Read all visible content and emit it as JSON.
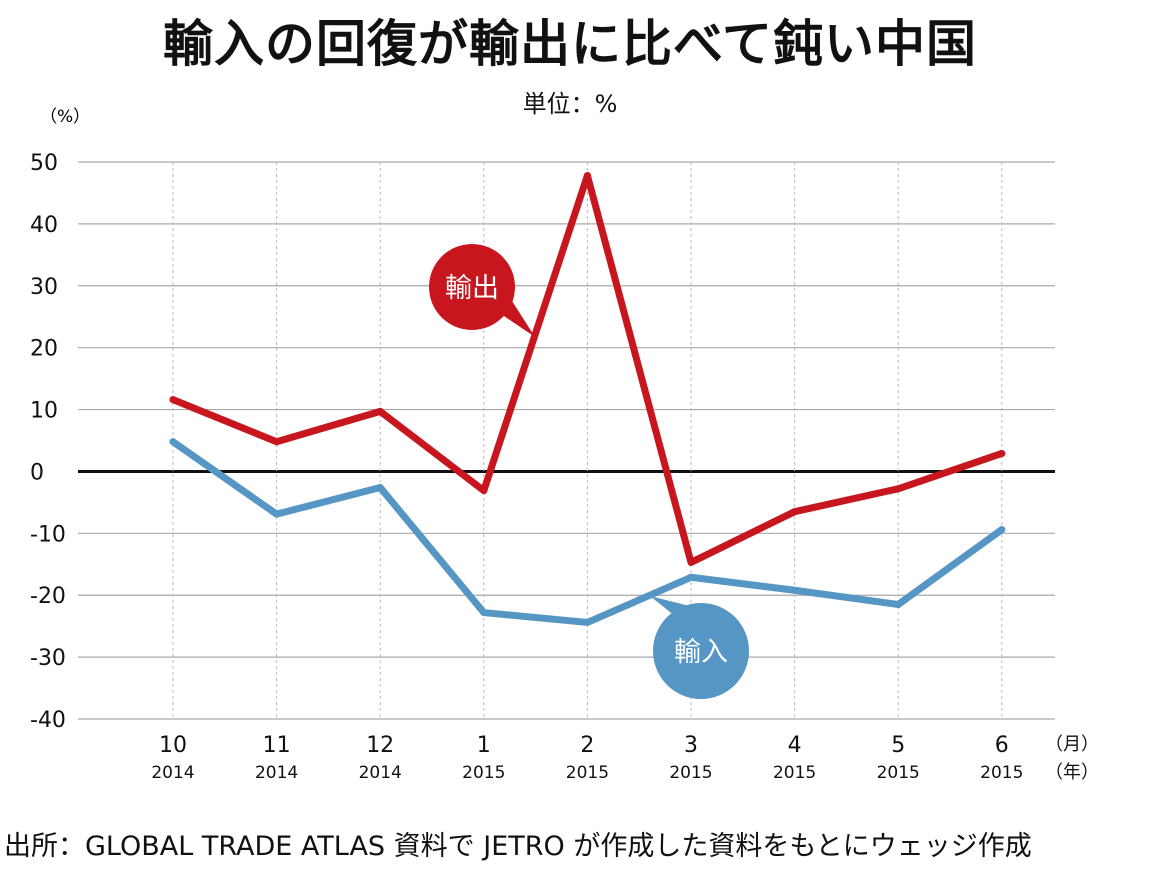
{
  "title": "輸入の回復が輸出に比べて鈍い中国",
  "unit_label": "単位：%",
  "source": "出所：GLOBAL TRADE ATLAS 資料で JETRO が作成した資料をもとにウェッジ作成",
  "chart_data": {
    "type": "line",
    "title": "輸入の回復が輸出に比べて鈍い中国",
    "ylabel": "（%）",
    "xlabel_month": "（月）",
    "xlabel_year": "（年）",
    "ylim": [
      -40,
      50
    ],
    "yticks": [
      "50",
      "40",
      "30",
      "20",
      "10",
      "0",
      "-10",
      "-20",
      "-30",
      "-40"
    ],
    "ytick_values": [
      50,
      40,
      30,
      20,
      10,
      0,
      -10,
      -20,
      -30,
      -40
    ],
    "categories": [
      {
        "month": "10",
        "year": "2014"
      },
      {
        "month": "11",
        "year": "2014"
      },
      {
        "month": "12",
        "year": "2014"
      },
      {
        "month": "1",
        "year": "2015"
      },
      {
        "month": "2",
        "year": "2015"
      },
      {
        "month": "3",
        "year": "2015"
      },
      {
        "month": "4",
        "year": "2015"
      },
      {
        "month": "5",
        "year": "2015"
      },
      {
        "month": "6",
        "year": "2015"
      }
    ],
    "grid": true,
    "series": [
      {
        "name": "輸出",
        "color": "#c8161e",
        "values": [
          11.6,
          4.8,
          9.7,
          -3.1,
          47.8,
          -14.7,
          -6.5,
          -2.8,
          2.9
        ]
      },
      {
        "name": "輸入",
        "color": "#5596c4",
        "values": [
          4.8,
          -6.9,
          -2.6,
          -22.8,
          -24.4,
          -17.1,
          -19.2,
          -21.5,
          -9.4
        ]
      }
    ]
  }
}
